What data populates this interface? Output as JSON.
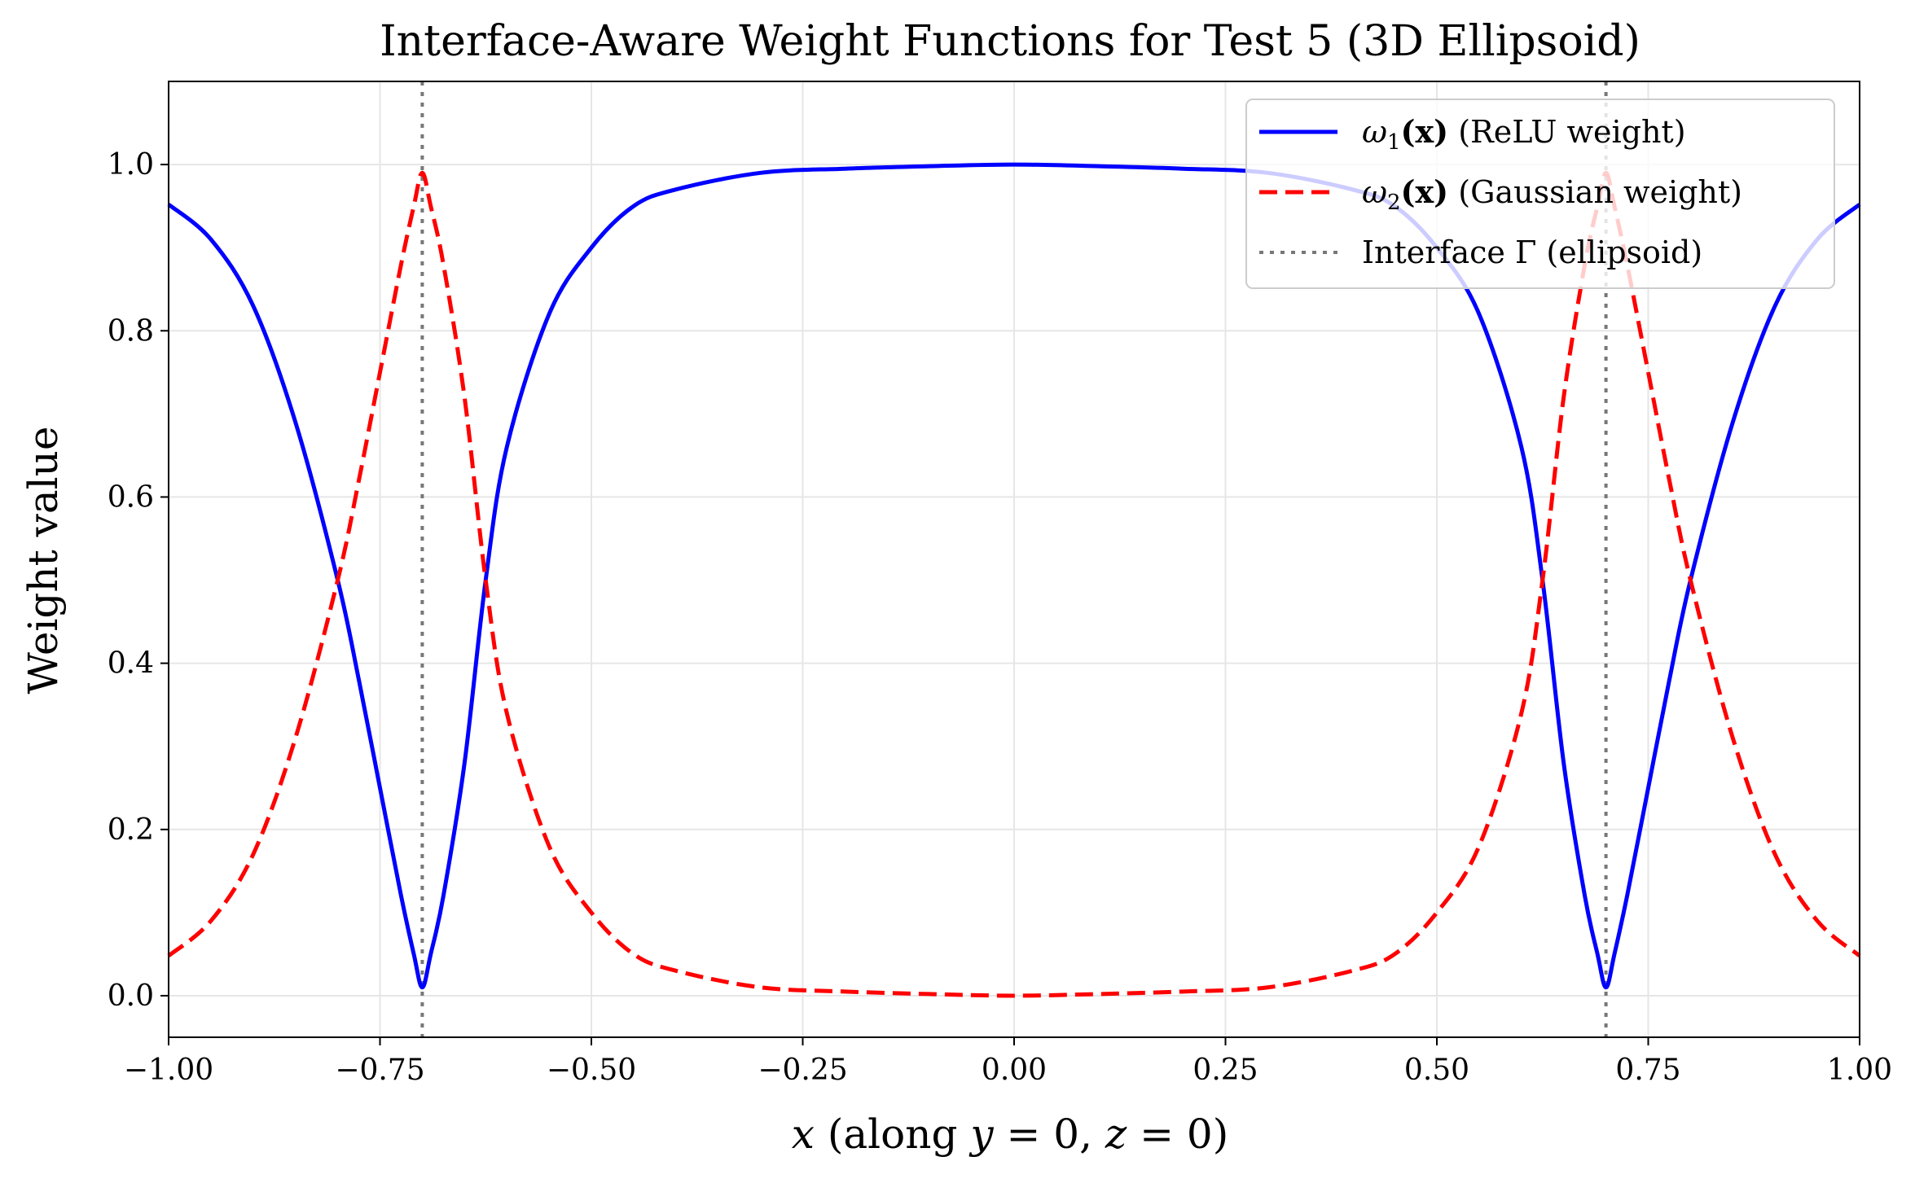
{
  "chart_data": {
    "type": "line",
    "title": "Interface-Aware Weight Functions for Test 5 (3D Ellipsoid)",
    "xlabel": "x (along y = 0, z = 0)",
    "ylabel": "Weight value",
    "xlim": [
      -1.0,
      1.0
    ],
    "ylim": [
      -0.05,
      1.1
    ],
    "xticks": [
      -1.0,
      -0.75,
      -0.5,
      -0.25,
      0.0,
      0.25,
      0.5,
      0.75,
      1.0
    ],
    "xtick_labels": [
      "−1.00",
      "−0.75",
      "−0.50",
      "−0.25",
      "0.00",
      "0.25",
      "0.50",
      "0.75",
      "1.00"
    ],
    "yticks": [
      0.0,
      0.2,
      0.4,
      0.6,
      0.8,
      1.0
    ],
    "ytick_labels": [
      "0.0",
      "0.2",
      "0.4",
      "0.6",
      "0.8",
      "1.0"
    ],
    "grid": true,
    "legend_position": "top-right",
    "interfaces": [
      -0.7,
      0.7
    ],
    "x": [
      -1.0,
      -0.95,
      -0.9,
      -0.85,
      -0.8,
      -0.775,
      -0.75,
      -0.725,
      -0.71,
      -0.7,
      -0.69,
      -0.675,
      -0.65,
      -0.625,
      -0.6,
      -0.55,
      -0.5,
      -0.45,
      -0.4,
      -0.3,
      -0.2,
      -0.1,
      0.0,
      0.1,
      0.2,
      0.3,
      0.4,
      0.45,
      0.5,
      0.55,
      0.6,
      0.625,
      0.65,
      0.675,
      0.69,
      0.7,
      0.71,
      0.725,
      0.75,
      0.775,
      0.8,
      0.85,
      0.9,
      0.95,
      1.0
    ],
    "series": [
      {
        "name": "ω₁(x) (ReLU weight)",
        "color": "#0000ff",
        "style": "solid",
        "values": [
          0.952,
          0.91,
          0.83,
          0.69,
          0.5,
          0.38,
          0.25,
          0.12,
          0.05,
          0.01,
          0.05,
          0.12,
          0.28,
          0.5,
          0.66,
          0.82,
          0.9,
          0.95,
          0.97,
          0.99,
          0.995,
          0.998,
          1.0,
          0.998,
          0.995,
          0.99,
          0.97,
          0.95,
          0.9,
          0.82,
          0.66,
          0.5,
          0.28,
          0.12,
          0.05,
          0.01,
          0.05,
          0.12,
          0.25,
          0.38,
          0.5,
          0.69,
          0.83,
          0.91,
          0.952
        ]
      },
      {
        "name": "ω₂(x) (Gaussian weight)",
        "color": "#ff0000",
        "style": "dashed",
        "values": [
          0.048,
          0.09,
          0.17,
          0.31,
          0.5,
          0.62,
          0.75,
          0.88,
          0.95,
          0.99,
          0.95,
          0.88,
          0.72,
          0.5,
          0.34,
          0.18,
          0.1,
          0.05,
          0.03,
          0.01,
          0.005,
          0.002,
          0.0,
          0.002,
          0.005,
          0.01,
          0.03,
          0.05,
          0.1,
          0.18,
          0.34,
          0.5,
          0.72,
          0.88,
          0.95,
          0.99,
          0.95,
          0.88,
          0.75,
          0.62,
          0.5,
          0.31,
          0.17,
          0.09,
          0.048
        ]
      }
    ],
    "legend": [
      {
        "omega": "ω",
        "sub": "1",
        "arg": "(x)",
        "text": "(ReLU weight)",
        "color": "#0000ff",
        "style": "solid"
      },
      {
        "omega": "ω",
        "sub": "2",
        "arg": "(x)",
        "text": "(Gaussian weight)",
        "color": "#ff0000",
        "style": "dashed"
      },
      {
        "text": "Interface Γ (ellipsoid)",
        "color": "#777777",
        "style": "dotted"
      }
    ],
    "colors": {
      "grid": "#e6e6e6",
      "interface": "#777777",
      "axes": "#000000"
    }
  }
}
